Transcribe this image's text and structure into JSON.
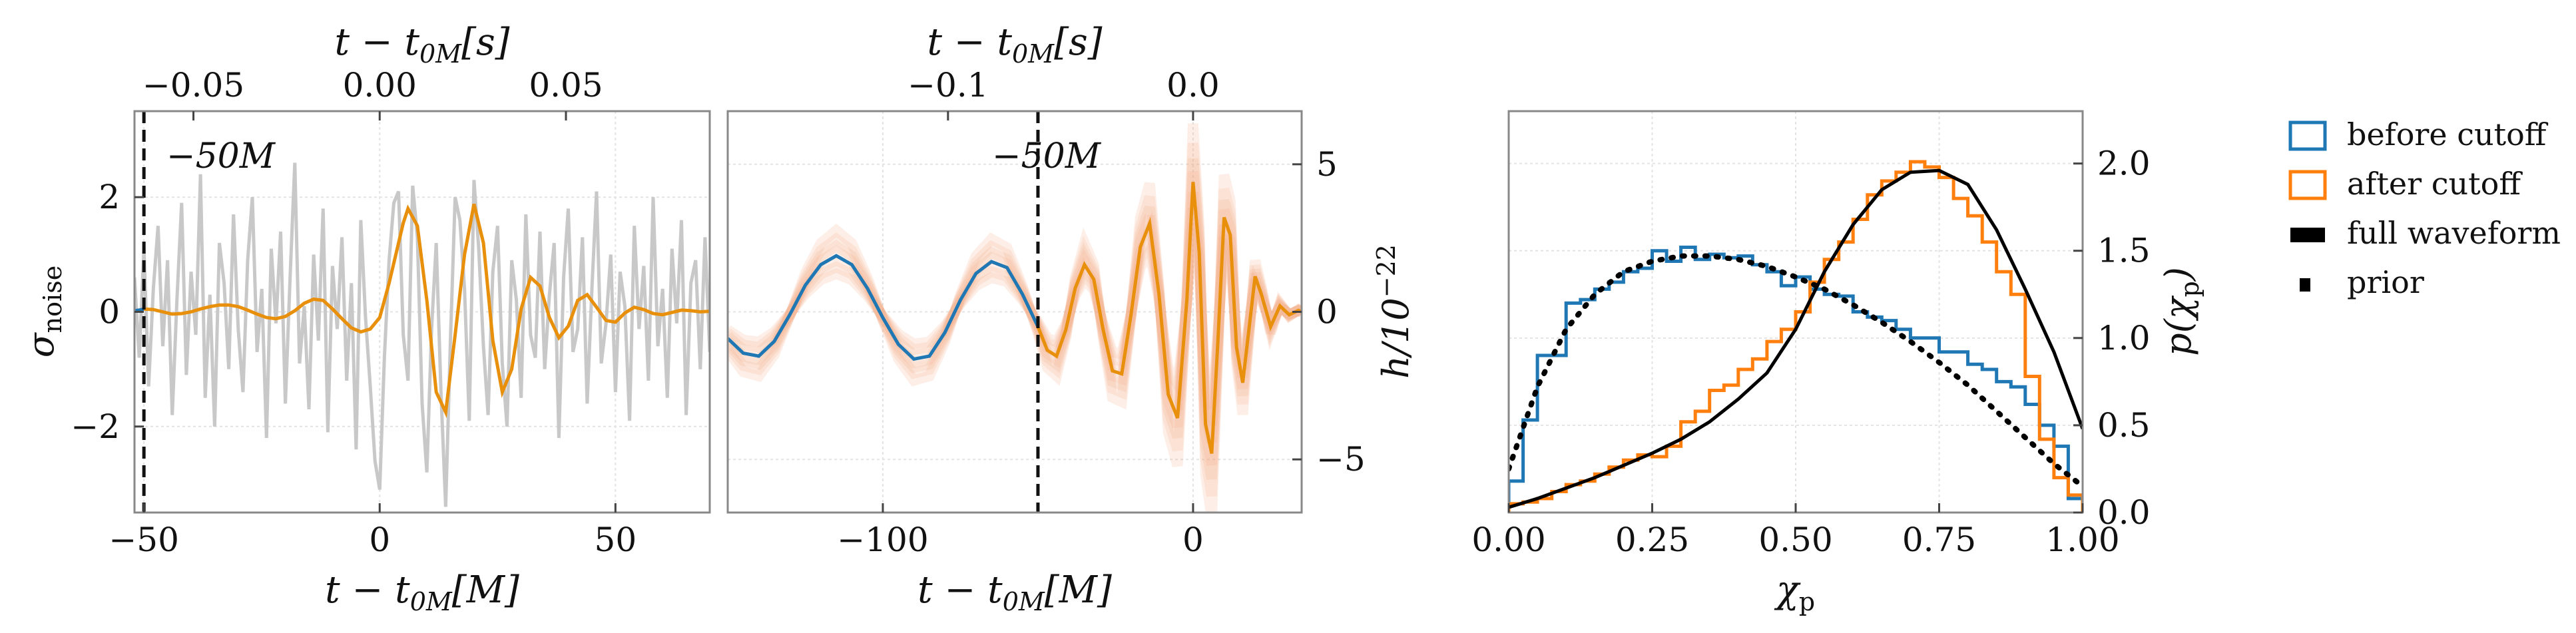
{
  "chart_data": [
    {
      "type": "line",
      "panel": "left",
      "xlabel_bottom": "t − t",
      "xlabel_bottom_sub": "0M",
      "xlabel_bottom_unit": "[M]",
      "xlabel_top": "t − t",
      "xlabel_top_sub": "0M",
      "xlabel_top_unit": "[s]",
      "ylabel": "σ",
      "ylabel_sub": "noise",
      "xlim": [
        -52,
        70
      ],
      "ylim": [
        -3.5,
        3.5
      ],
      "xticks": [
        -50,
        0,
        50
      ],
      "xtick_labels": [
        "−50",
        "0",
        "50"
      ],
      "yticks": [
        -2,
        0,
        2
      ],
      "ytick_labels": [
        "−2",
        "0",
        "2"
      ],
      "top_ticks": [
        -0.05,
        0.0,
        0.05
      ],
      "top_tick_labels": [
        "−0.05",
        "0.00",
        "0.05"
      ],
      "top_tick_positions_M": [
        -39.5,
        0,
        39.5
      ],
      "cutoff": -50,
      "cutoff_label": "−50M",
      "grid": true,
      "series": [
        {
          "role": "noisy data (gray)",
          "color": "#c8c8c8",
          "x": [
            -52,
            -51,
            -50,
            -49,
            -48,
            -47,
            -46,
            -45,
            -44,
            -43,
            -42,
            -41,
            -40,
            -39,
            -38,
            -37,
            -36,
            -35,
            -34,
            -33,
            -32,
            -31,
            -30,
            -29,
            -28,
            -27,
            -26,
            -25,
            -24,
            -23,
            -22,
            -21,
            -20,
            -19,
            -18,
            -17,
            -16,
            -15,
            -14,
            -13,
            -12,
            -11,
            -10,
            -9,
            -8,
            -7,
            -6,
            -5,
            -4,
            -3,
            -2,
            -1,
            0,
            1,
            2,
            3,
            4,
            5,
            6,
            7,
            8,
            9,
            10,
            11,
            12,
            13,
            14,
            15,
            16,
            17,
            18,
            19,
            20,
            21,
            22,
            23,
            24,
            25,
            26,
            27,
            28,
            29,
            30,
            31,
            32,
            33,
            34,
            35,
            36,
            37,
            38,
            39,
            40,
            41,
            42,
            43,
            44,
            45,
            46,
            47,
            48,
            49,
            50,
            51,
            52,
            53,
            54,
            55,
            56,
            57,
            58,
            59,
            60,
            61,
            62,
            63,
            64,
            65,
            66,
            67,
            68,
            69,
            70
          ],
          "y": [
            0.6,
            -0.8,
            1.1,
            -1.3,
            0.4,
            1.5,
            -0.6,
            0.9,
            -1.8,
            0.2,
            1.9,
            -1.1,
            0.7,
            -0.4,
            2.4,
            -1.5,
            0.3,
            -2.0,
            1.2,
            0.5,
            -1.0,
            1.7,
            -0.3,
            -1.4,
            0.9,
            2.0,
            -0.7,
            0.4,
            -2.2,
            1.1,
            -0.2,
            1.4,
            -1.6,
            0.6,
            2.6,
            -0.9,
            0.1,
            -1.7,
            1.0,
            -0.5,
            1.8,
            -2.1,
            0.8,
            -0.3,
            1.3,
            -1.2,
            0.5,
            -2.4,
            1.6,
            -0.1,
            -1.3,
            -2.6,
            -3.1,
            -0.8,
            0.9,
            1.9,
            2.1,
            -0.4,
            -1.2,
            2.2,
            1.3,
            -1.6,
            -2.8,
            -0.3,
            1.2,
            -1.4,
            -3.4,
            -0.5,
            2.0,
            1.6,
            0.4,
            -1.9,
            2.3,
            1.1,
            -0.6,
            -1.8,
            0.7,
            1.5,
            -0.9,
            -2.0,
            0.9,
            0.2,
            -1.5,
            1.7,
            -0.4,
            -0.8,
            1.4,
            -1.0,
            0.3,
            1.2,
            -2.2,
            0.6,
            1.8,
            -0.7,
            -0.3,
            1.3,
            -1.6,
            0.4,
            2.1,
            -0.9,
            -0.2,
            1.0,
            -1.4,
            0.7,
            0.1,
            -1.9,
            1.5,
            -0.3,
            0.8,
            -1.2,
            2.0,
            -0.6,
            0.4,
            -1.5,
            1.1,
            -0.2,
            1.6,
            -1.8,
            0.5,
            0.9,
            -1.0,
            1.3,
            -0.7
          ]
        },
        {
          "role": "waveform before cutoff",
          "color": "#1f77b4",
          "x": [
            -52,
            -51,
            -50
          ],
          "y": [
            0.02,
            0.03,
            0.05
          ]
        },
        {
          "role": "waveform after cutoff",
          "color": "#e8900c",
          "x": [
            -50,
            -48,
            -46,
            -44,
            -42,
            -40,
            -38,
            -36,
            -34,
            -32,
            -30,
            -28,
            -26,
            -24,
            -22,
            -20,
            -18,
            -16,
            -14,
            -12,
            -10,
            -8,
            -6,
            -4,
            -2,
            0,
            2,
            4,
            5,
            6,
            8,
            10,
            12,
            14,
            16,
            18,
            20,
            22,
            24,
            26,
            28,
            30,
            32,
            34,
            36,
            38,
            40,
            42,
            44,
            46,
            48,
            50,
            52,
            54,
            56,
            58,
            60,
            62,
            64,
            66,
            68,
            70
          ],
          "y": [
            0.05,
            0.04,
            0.0,
            -0.04,
            -0.03,
            0.0,
            0.05,
            0.09,
            0.12,
            0.12,
            0.09,
            0.03,
            -0.04,
            -0.1,
            -0.12,
            -0.08,
            0.02,
            0.15,
            0.22,
            0.2,
            0.05,
            -0.12,
            -0.28,
            -0.35,
            -0.3,
            -0.1,
            0.5,
            1.2,
            1.55,
            1.8,
            1.5,
            0.2,
            -1.4,
            -1.75,
            -0.4,
            1.0,
            1.88,
            1.2,
            -0.5,
            -1.4,
            -1.0,
            0.05,
            0.6,
            0.45,
            -0.1,
            -0.45,
            -0.25,
            0.2,
            0.3,
            0.08,
            -0.15,
            -0.18,
            -0.02,
            0.08,
            0.04,
            -0.03,
            -0.05,
            -0.01,
            0.03,
            0.02,
            0.0,
            0.01
          ]
        }
      ]
    },
    {
      "type": "line",
      "panel": "middle",
      "xlabel_bottom": "t − t",
      "xlabel_bottom_sub": "0M",
      "xlabel_bottom_unit": "[M]",
      "xlabel_top": "t − t",
      "xlabel_top_sub": "0M",
      "xlabel_top_unit": "[s]",
      "ylabel_right": "h/10",
      "ylabel_right_sup": "−22",
      "xlim": [
        -150,
        35
      ],
      "ylim": [
        -6.8,
        6.8
      ],
      "xticks": [
        -100,
        0
      ],
      "xtick_labels": [
        "−100",
        "0"
      ],
      "yticks": [
        -5,
        0,
        5
      ],
      "ytick_labels": [
        "−5",
        "0",
        "5"
      ],
      "top_ticks": [
        -0.1,
        0.0
      ],
      "top_tick_labels": [
        "−0.1",
        "0.0"
      ],
      "top_tick_positions_M": [
        -79,
        0
      ],
      "cutoff": -50,
      "cutoff_label": "−50M",
      "grid": true,
      "band_color": "#f4a582",
      "series": [
        {
          "role": "waveform before cutoff",
          "color": "#1f77b4",
          "x": [
            -150,
            -145,
            -140,
            -135,
            -130,
            -125,
            -120,
            -115,
            -110,
            -105,
            -100,
            -95,
            -90,
            -85,
            -80,
            -75,
            -70,
            -65,
            -60,
            -55,
            -50
          ],
          "y": [
            -0.9,
            -1.4,
            -1.5,
            -1.0,
            -0.1,
            0.9,
            1.6,
            1.9,
            1.6,
            0.8,
            -0.2,
            -1.1,
            -1.6,
            -1.5,
            -0.7,
            0.4,
            1.3,
            1.7,
            1.5,
            0.6,
            -0.5
          ]
        },
        {
          "role": "waveform after cutoff",
          "color": "#e8900c",
          "x": [
            -50,
            -47,
            -44,
            -41,
            -38,
            -35,
            -32,
            -29,
            -26,
            -23,
            -20,
            -17,
            -14,
            -11,
            -8,
            -5,
            -2,
            0,
            2,
            4,
            6,
            8,
            10,
            12,
            14,
            16,
            18,
            20,
            22,
            25,
            28,
            31,
            34,
            35
          ],
          "y": [
            -0.5,
            -1.3,
            -1.5,
            -0.6,
            0.8,
            1.6,
            1.1,
            -0.6,
            -2.0,
            -2.1,
            -0.1,
            2.2,
            3.0,
            0.6,
            -2.8,
            -3.6,
            0.4,
            4.4,
            2.0,
            -3.8,
            -4.8,
            -1.0,
            3.2,
            2.6,
            -1.2,
            -2.4,
            -0.6,
            1.2,
            0.6,
            -0.5,
            0.2,
            -0.1,
            0.05,
            0.0
          ]
        }
      ]
    },
    {
      "type": "histogram",
      "panel": "right",
      "xlabel": "χ",
      "xlabel_sub": "p",
      "ylabel_right": "p(χ",
      "ylabel_right_sub": "p",
      "ylabel_right_close": ")",
      "xlim": [
        0,
        1
      ],
      "ylim": [
        0,
        2.3
      ],
      "xticks": [
        0,
        0.25,
        0.5,
        0.75,
        1.0
      ],
      "xtick_labels": [
        "0.00",
        "0.25",
        "0.50",
        "0.75",
        "1.00"
      ],
      "yticks": [
        0,
        0.5,
        1.0,
        1.5,
        2.0
      ],
      "ytick_labels": [
        "0.0",
        "0.5",
        "1.0",
        "1.5",
        "2.0"
      ],
      "grid": true,
      "bin_edges": [
        0,
        0.025,
        0.05,
        0.075,
        0.1,
        0.125,
        0.15,
        0.175,
        0.2,
        0.225,
        0.25,
        0.275,
        0.3,
        0.325,
        0.35,
        0.375,
        0.4,
        0.425,
        0.45,
        0.475,
        0.5,
        0.525,
        0.55,
        0.575,
        0.6,
        0.625,
        0.65,
        0.675,
        0.7,
        0.725,
        0.75,
        0.775,
        0.8,
        0.825,
        0.85,
        0.875,
        0.9,
        0.925,
        0.95,
        0.975,
        1.0
      ],
      "series": [
        {
          "name": "before cutoff",
          "style": "step",
          "color": "#1f77b4",
          "values": [
            0.18,
            0.53,
            0.9,
            0.9,
            1.2,
            1.22,
            1.28,
            1.32,
            1.38,
            1.4,
            1.5,
            1.44,
            1.52,
            1.45,
            1.48,
            1.46,
            1.47,
            1.42,
            1.38,
            1.3,
            1.35,
            1.28,
            1.25,
            1.24,
            1.15,
            1.12,
            1.1,
            1.05,
            1.0,
            1.0,
            0.92,
            0.92,
            0.85,
            0.82,
            0.75,
            0.72,
            0.62,
            0.5,
            0.38,
            0.08
          ]
        },
        {
          "name": "after cutoff",
          "style": "step",
          "color": "#ff7f0e",
          "values": [
            0.05,
            0.06,
            0.08,
            0.12,
            0.16,
            0.18,
            0.22,
            0.26,
            0.3,
            0.33,
            0.32,
            0.38,
            0.52,
            0.58,
            0.7,
            0.73,
            0.82,
            0.88,
            0.98,
            1.05,
            1.15,
            1.32,
            1.45,
            1.55,
            1.68,
            1.82,
            1.9,
            1.95,
            2.01,
            1.98,
            1.92,
            1.8,
            1.7,
            1.55,
            1.38,
            1.25,
            0.78,
            0.42,
            0.2,
            0.1
          ]
        },
        {
          "name": "full waveform",
          "style": "line",
          "color": "#000000",
          "x": [
            0,
            0.05,
            0.1,
            0.15,
            0.2,
            0.25,
            0.3,
            0.35,
            0.4,
            0.45,
            0.5,
            0.55,
            0.6,
            0.65,
            0.7,
            0.75,
            0.8,
            0.85,
            0.9,
            0.95,
            1.0
          ],
          "y": [
            0.03,
            0.08,
            0.14,
            0.2,
            0.27,
            0.34,
            0.42,
            0.52,
            0.65,
            0.8,
            1.05,
            1.38,
            1.65,
            1.85,
            1.95,
            1.96,
            1.88,
            1.62,
            1.28,
            0.92,
            0.48
          ]
        },
        {
          "name": "prior",
          "style": "dotted",
          "color": "#000000",
          "x": [
            0,
            0.05,
            0.1,
            0.15,
            0.2,
            0.25,
            0.3,
            0.35,
            0.4,
            0.45,
            0.5,
            0.55,
            0.6,
            0.65,
            0.7,
            0.75,
            0.8,
            0.85,
            0.9,
            0.95,
            1.0
          ],
          "y": [
            0.25,
            0.72,
            1.05,
            1.25,
            1.38,
            1.44,
            1.47,
            1.47,
            1.45,
            1.41,
            1.35,
            1.28,
            1.19,
            1.09,
            0.98,
            0.86,
            0.73,
            0.58,
            0.43,
            0.28,
            0.15
          ]
        }
      ]
    }
  ],
  "legend": {
    "placement": "outside-right",
    "items": [
      {
        "label": "before cutoff",
        "color": "#1f77b4",
        "marker": "box"
      },
      {
        "label": "after cutoff",
        "color": "#ff7f0e",
        "marker": "box"
      },
      {
        "label": "full waveform",
        "color": "#000000",
        "marker": "solid"
      },
      {
        "label": "prior",
        "color": "#000000",
        "marker": "dot"
      }
    ]
  }
}
